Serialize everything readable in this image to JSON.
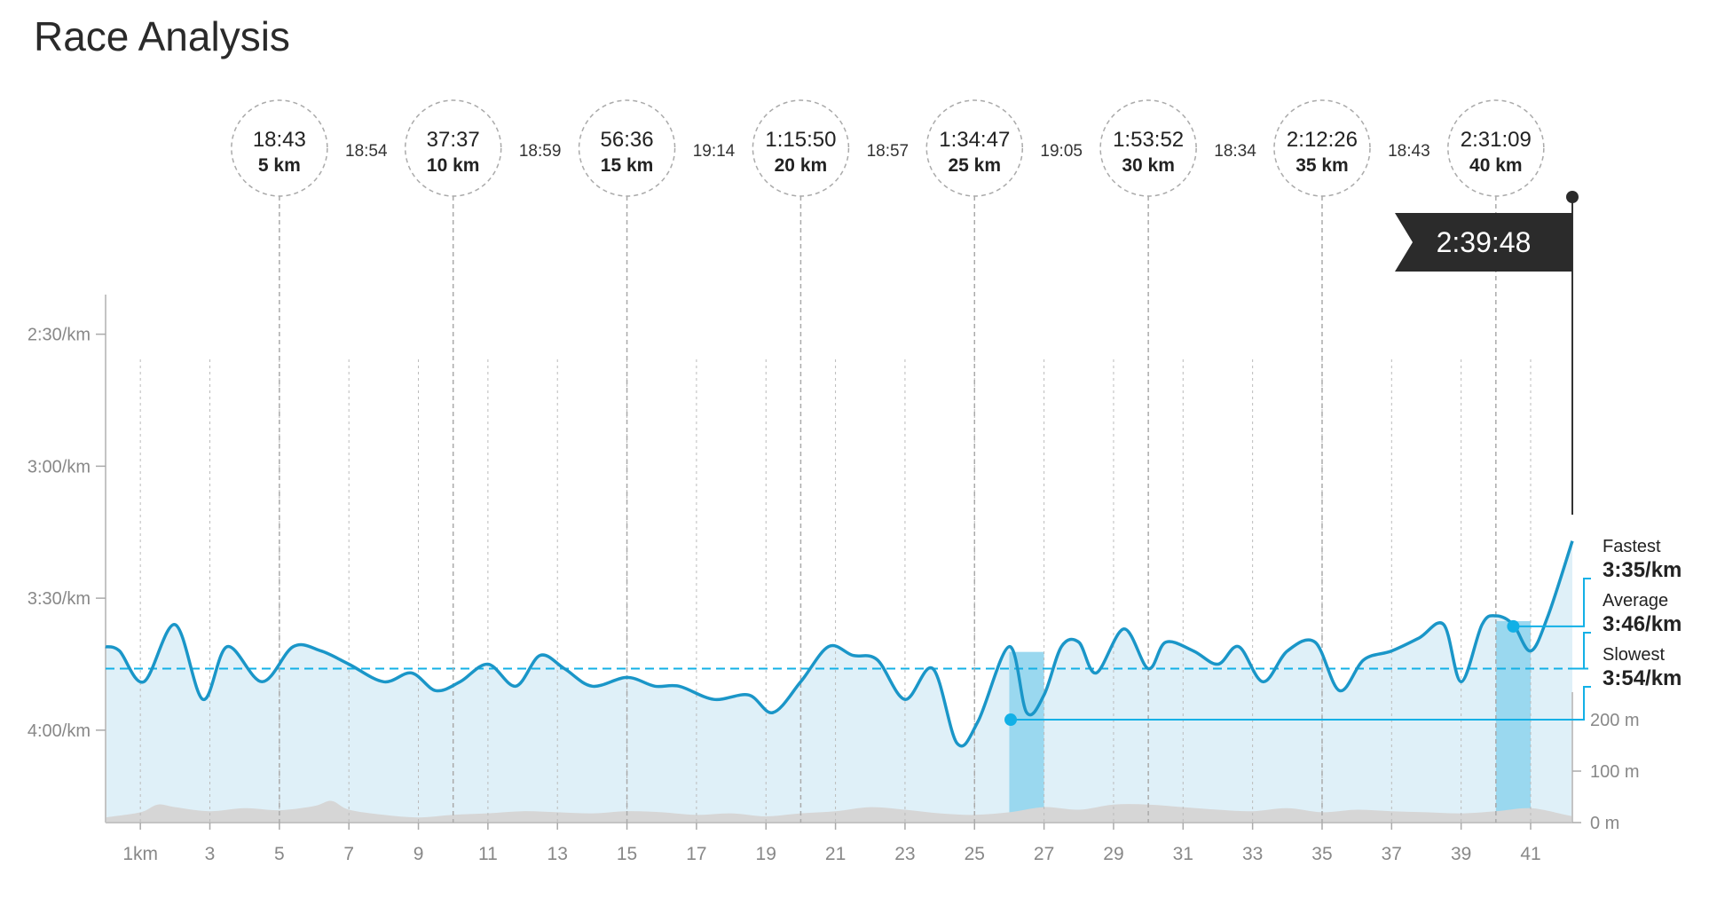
{
  "page": {
    "title": "Race Analysis"
  },
  "finish": {
    "time": "2:39:48"
  },
  "splits": [
    {
      "time": "18:43",
      "dist": "5 km",
      "km": 5
    },
    {
      "time": "37:37",
      "dist": "10 km",
      "km": 10
    },
    {
      "time": "56:36",
      "dist": "15 km",
      "km": 15
    },
    {
      "time": "1:15:50",
      "dist": "20 km",
      "km": 20
    },
    {
      "time": "1:34:47",
      "dist": "25 km",
      "km": 25
    },
    {
      "time": "1:53:52",
      "dist": "30 km",
      "km": 30
    },
    {
      "time": "2:12:26",
      "dist": "35 km",
      "km": 35
    },
    {
      "time": "2:31:09",
      "dist": "40 km",
      "km": 40
    }
  ],
  "segment_times": [
    "18:54",
    "18:59",
    "19:14",
    "18:57",
    "19:05",
    "18:34",
    "18:43"
  ],
  "stats": {
    "fastest": {
      "label": "Fastest",
      "value": "3:35/km",
      "km": 40.5
    },
    "average": {
      "label": "Average",
      "value": "3:46/km"
    },
    "slowest": {
      "label": "Slowest",
      "value": "3:54/km",
      "km": 26.5
    }
  },
  "colors": {
    "line": "#1a96c8",
    "fill": "#dff0f8",
    "highlight": "#9ad8ef",
    "marker": "#12b0e6",
    "grid": "#bbbbbb",
    "elevation": "#d6d6d6",
    "flag": "#2b2b2b"
  },
  "chart_data": {
    "type": "line",
    "title": "Race Analysis",
    "xlabel": "",
    "ylabel": "",
    "xlim": [
      0,
      42.2
    ],
    "x_ticks": [
      {
        "label": "1km",
        "v": 1
      },
      {
        "label": "3",
        "v": 3
      },
      {
        "label": "5",
        "v": 5
      },
      {
        "label": "7",
        "v": 7
      },
      {
        "label": "9",
        "v": 9
      },
      {
        "label": "11",
        "v": 11
      },
      {
        "label": "13",
        "v": 13
      },
      {
        "label": "15",
        "v": 15
      },
      {
        "label": "17",
        "v": 17
      },
      {
        "label": "19",
        "v": 19
      },
      {
        "label": "21",
        "v": 21
      },
      {
        "label": "23",
        "v": 23
      },
      {
        "label": "25",
        "v": 25
      },
      {
        "label": "27",
        "v": 27
      },
      {
        "label": "29",
        "v": 29
      },
      {
        "label": "31",
        "v": 31
      },
      {
        "label": "33",
        "v": 33
      },
      {
        "label": "35",
        "v": 35
      },
      {
        "label": "37",
        "v": 37
      },
      {
        "label": "39",
        "v": 39
      },
      {
        "label": "41",
        "v": 41
      }
    ],
    "pace_axis": {
      "unit": "seconds per km (faster at top)",
      "range": [
        141,
        261
      ],
      "ticks": [
        {
          "label": "2:30/km",
          "v": 150
        },
        {
          "label": "3:00/km",
          "v": 180
        },
        {
          "label": "3:30/km",
          "v": 210
        },
        {
          "label": "4:00/km",
          "v": 240
        }
      ]
    },
    "elevation_axis": {
      "unit": "m",
      "range": [
        0,
        250
      ],
      "ticks": [
        {
          "label": "200 m",
          "v": 200
        },
        {
          "label": "100 m",
          "v": 100
        },
        {
          "label": "0 m",
          "v": 0
        }
      ]
    },
    "average_pace": 226,
    "series": [
      {
        "key": "pace",
        "x": [
          0,
          0.4,
          1.1,
          2.0,
          2.8,
          3.5,
          4.5,
          5.4,
          6.2,
          7.0,
          8.0,
          8.8,
          9.5,
          10.2,
          11.0,
          11.8,
          12.5,
          13.2,
          14.0,
          15.0,
          15.8,
          16.5,
          17.5,
          18.5,
          19.2,
          20.0,
          20.8,
          21.5,
          22.2,
          23.0,
          23.8,
          24.5,
          25.1,
          26.0,
          26.5,
          27.0,
          27.5,
          28.0,
          28.5,
          29.3,
          30.0,
          30.5,
          31.3,
          32.0,
          32.6,
          33.3,
          34.0,
          34.8,
          35.5,
          36.2,
          37.0,
          37.8,
          38.5,
          39.0,
          39.6,
          40.0,
          40.5,
          41.0,
          41.5,
          42.2
        ],
        "y": [
          221,
          222,
          229,
          216,
          233,
          221,
          229,
          221,
          222,
          225,
          229,
          227,
          231,
          229,
          225,
          230,
          223,
          226,
          230,
          228,
          230,
          230,
          233,
          232,
          236,
          229,
          221,
          223,
          224,
          233,
          226,
          243,
          238,
          221,
          236,
          232,
          221,
          220,
          227,
          217,
          226,
          220,
          222,
          225,
          221,
          229,
          222,
          220,
          231,
          224,
          222,
          219,
          216,
          229,
          216,
          214,
          216,
          222,
          214,
          197
        ]
      },
      {
        "key": "elevation",
        "x": [
          0,
          1,
          1.5,
          2,
          3,
          4,
          5,
          6,
          6.5,
          7,
          8,
          9,
          10,
          11,
          12,
          13,
          14,
          15,
          16,
          17,
          18,
          19,
          20,
          21,
          22,
          23,
          24,
          25,
          26,
          27,
          28,
          29,
          30,
          31,
          32,
          33,
          34,
          35,
          36,
          37,
          38,
          39,
          40,
          41,
          42,
          42.2
        ],
        "y": [
          10,
          20,
          35,
          30,
          22,
          28,
          24,
          32,
          42,
          25,
          15,
          10,
          15,
          18,
          22,
          20,
          18,
          22,
          20,
          15,
          18,
          12,
          18,
          22,
          30,
          25,
          18,
          15,
          20,
          30,
          25,
          35,
          35,
          30,
          25,
          22,
          28,
          20,
          25,
          22,
          20,
          18,
          22,
          28,
          15,
          12
        ]
      }
    ]
  }
}
